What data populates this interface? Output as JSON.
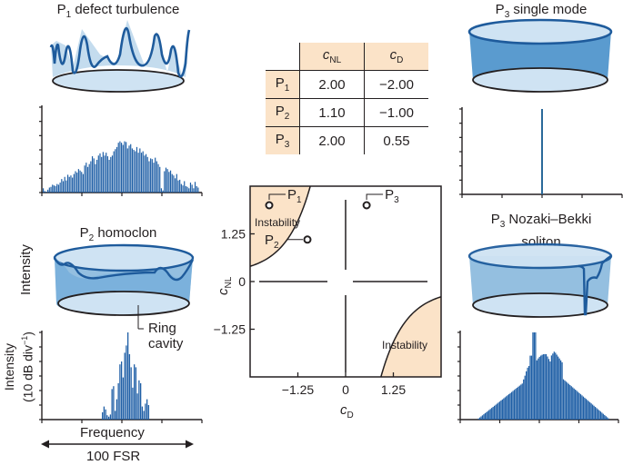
{
  "panels": {
    "p1": {
      "label_main": "P",
      "label_sub": "1",
      "label_rest": " defect turbulence"
    },
    "p3_single": {
      "label_main": "P",
      "label_sub": "3",
      "label_rest": " single mode"
    },
    "p2": {
      "label_main": "P",
      "label_sub": "2",
      "label_rest": " homoclon",
      "intensity_label": "Intensity",
      "ring_label_line1": "Ring",
      "ring_label_line2": "cavity"
    },
    "p3_soliton": {
      "label_main": "P",
      "label_sub": "3",
      "label_rest": " Nozaki–Bekki",
      "label_line2": "soliton"
    }
  },
  "spectrum_axes": {
    "ylabel_line1": "Intensity",
    "ylabel_line2": "(10 dB div",
    "ylabel_sup": "−1",
    "ylabel_close": ")",
    "xlabel": "Frequency",
    "span_label": "100 FSR"
  },
  "table": {
    "col_headers": [
      {
        "main": "c",
        "sub": "NL"
      },
      {
        "main": "c",
        "sub": "D"
      }
    ],
    "rows": [
      {
        "main": "P",
        "sub": "1",
        "c_nl": "2.00",
        "c_d": "−2.00"
      },
      {
        "main": "P",
        "sub": "2",
        "c_nl": "1.10",
        "c_d": "−1.00"
      },
      {
        "main": "P",
        "sub": "3",
        "c_nl": "2.00",
        "c_d": "0.55"
      }
    ]
  },
  "colors": {
    "spectrum_blue": "#1f5fa6",
    "ring_fill_light": "#cfe3f3",
    "ring_fill_mid": "#94bfe0",
    "ring_fill_dark": "#5a9bcf",
    "ring_line": "#1e5b9c",
    "instability_fill": "#fbe3c8"
  },
  "chart_data": [
    {
      "type": "scatter",
      "title": "Phase diagram",
      "xlabel_main": "c",
      "xlabel_sub": "D",
      "ylabel_main": "c",
      "ylabel_sub": "NL",
      "xlim": [
        -2.5,
        2.5
      ],
      "ylim": [
        -2.5,
        2.5
      ],
      "xticks": [
        -1.25,
        0,
        1.25
      ],
      "xtick_labels": [
        "−1.25",
        "0",
        "1.25"
      ],
      "yticks": [
        -1.25,
        0,
        1.25
      ],
      "ytick_labels": [
        "−1.25",
        "0",
        "1.25"
      ],
      "points": [
        {
          "name": "P1",
          "label_main": "P",
          "label_sub": "1",
          "x": -2.0,
          "y": 2.0
        },
        {
          "name": "P2",
          "label_main": "P",
          "label_sub": "2",
          "x": -1.0,
          "y": 1.1
        },
        {
          "name": "P3",
          "label_main": "P",
          "label_sub": "3",
          "x": 0.55,
          "y": 2.0
        }
      ],
      "regions": [
        {
          "name": "instability-upper-left",
          "label": "Instability",
          "boundary": "c_NL * c_D = -1 (approx)",
          "quadrant": "top-left"
        },
        {
          "name": "instability-lower-right",
          "label": "Instability",
          "boundary": "c_NL * c_D = -1 (approx)",
          "quadrant": "bottom-right"
        }
      ],
      "grid": false
    },
    {
      "type": "bar",
      "title": "P1 defect turbulence spectrum",
      "xlabel": "Frequency",
      "ylabel": "Intensity (10 dB div−1)",
      "ylim_divisions": 6,
      "shape": "broad noisy dome",
      "values": [
        0.3,
        0.1,
        0.05,
        0.2,
        0.35,
        0.4,
        0.55,
        0.5,
        0.45,
        0.6,
        0.55,
        0.7,
        0.95,
        0.8,
        1.1,
        0.85,
        1.25,
        1.1,
        1.2,
        1.05,
        1.3,
        1.5,
        1.4,
        1.65,
        1.55,
        1.45,
        1.3,
        1.9,
        2.1,
        1.8,
        2.0,
        2.2,
        2.55,
        2.4,
        2.0,
        2.3,
        2.6,
        2.75,
        2.5,
        2.85,
        2.6,
        2.8,
        2.55,
        2.3,
        2.5,
        2.6,
        2.9,
        3.05,
        3.2,
        3.5,
        3.6,
        3.5,
        3.35,
        3.6,
        3.55,
        3.1,
        3.3,
        3.4,
        3.1,
        3.0,
        2.9,
        3.2,
        2.8,
        3.1,
        2.8,
        2.9,
        2.6,
        2.7,
        2.5,
        2.2,
        2.4,
        2.35,
        2.1,
        2.45,
        2.2,
        2.0,
        1.8,
        0.3,
        0.15,
        1.5,
        1.75,
        1.65,
        1.45,
        1.55,
        1.3,
        1.2,
        1.0,
        1.3,
        0.85,
        0.9,
        0.6,
        0.5,
        0.8,
        0.45,
        0.4,
        0.3,
        0.7,
        0.55,
        0.3,
        0.75,
        0.45,
        0.35
      ]
    },
    {
      "type": "bar",
      "title": "P3 single mode spectrum",
      "xlabel": "Frequency",
      "shape": "single line at center",
      "values": [
        6.0
      ]
    },
    {
      "type": "bar",
      "title": "P2 homoclon spectrum",
      "xlabel": "Frequency",
      "ylabel": "Intensity (10 dB div−1)",
      "shape": "narrow comb centered",
      "values": [
        0.5,
        0.9,
        0.7,
        0.3,
        0.2,
        0.35,
        2.1,
        2.3,
        0.6,
        1.4,
        2.5,
        3.8,
        4.0,
        2.9,
        4.6,
        5.1,
        6.0,
        4.5,
        3.6,
        2.2,
        3.8,
        3.6,
        1.8,
        2.7,
        2.5,
        0.9,
        0.6,
        1.1,
        1.4,
        1.0
      ]
    },
    {
      "type": "bar",
      "title": "P3 Nozaki–Bekki soliton spectrum",
      "xlabel": "Frequency",
      "shape": "triangular with central peaks",
      "peak_values": {
        "central_spike": 6.0,
        "secondary_peak": 4.8
      }
    }
  ]
}
